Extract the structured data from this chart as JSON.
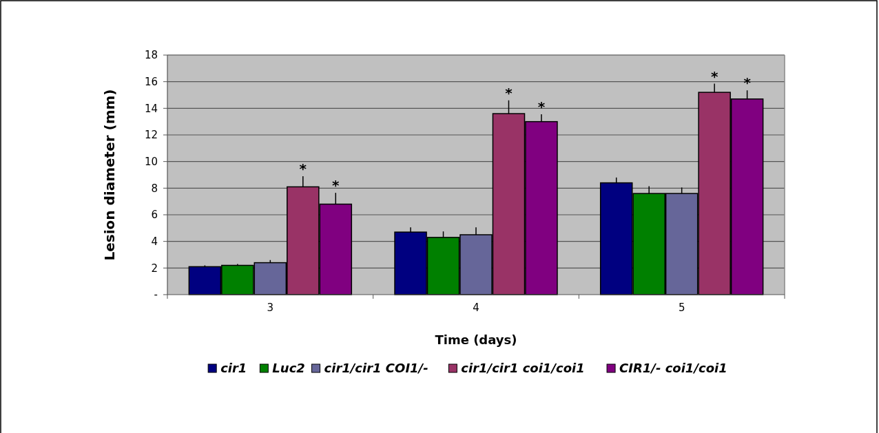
{
  "chart_data": {
    "type": "bar",
    "xlabel": "Time (days)",
    "ylabel": "Lesion diameter (mm)",
    "categories": [
      "3",
      "4",
      "5"
    ],
    "series": [
      {
        "name": "cir1",
        "color": "#000080",
        "values": [
          2.1,
          4.7,
          8.4
        ],
        "errors": [
          0.1,
          0.35,
          0.4
        ]
      },
      {
        "name": "Luc2",
        "color": "#008000",
        "values": [
          2.2,
          4.3,
          7.6
        ],
        "errors": [
          0.1,
          0.45,
          0.55
        ]
      },
      {
        "name": "cir1/cir1 COI1/-",
        "color": "#666699",
        "values": [
          2.4,
          4.5,
          7.6
        ],
        "errors": [
          0.2,
          0.55,
          0.45
        ]
      },
      {
        "name": "cir1/cir1 coi1/coi1",
        "color": "#993366",
        "values": [
          8.1,
          13.6,
          15.2
        ],
        "errors": [
          0.8,
          1.0,
          0.65
        ],
        "value_labels": [
          "*",
          "*",
          "*"
        ]
      },
      {
        "name": "CIR1/- coi1/coi1",
        "color": "#800080",
        "values": [
          6.8,
          13.0,
          14.7
        ],
        "errors": [
          0.85,
          0.55,
          0.65
        ],
        "value_labels": [
          "*",
          "*",
          "*"
        ]
      }
    ],
    "ylim": [
      0,
      18
    ],
    "yticks": [
      {
        "value": 0,
        "label": "-"
      },
      2,
      4,
      6,
      8,
      10,
      12,
      14,
      16,
      18
    ],
    "grid": "y",
    "legend": "bottom"
  }
}
